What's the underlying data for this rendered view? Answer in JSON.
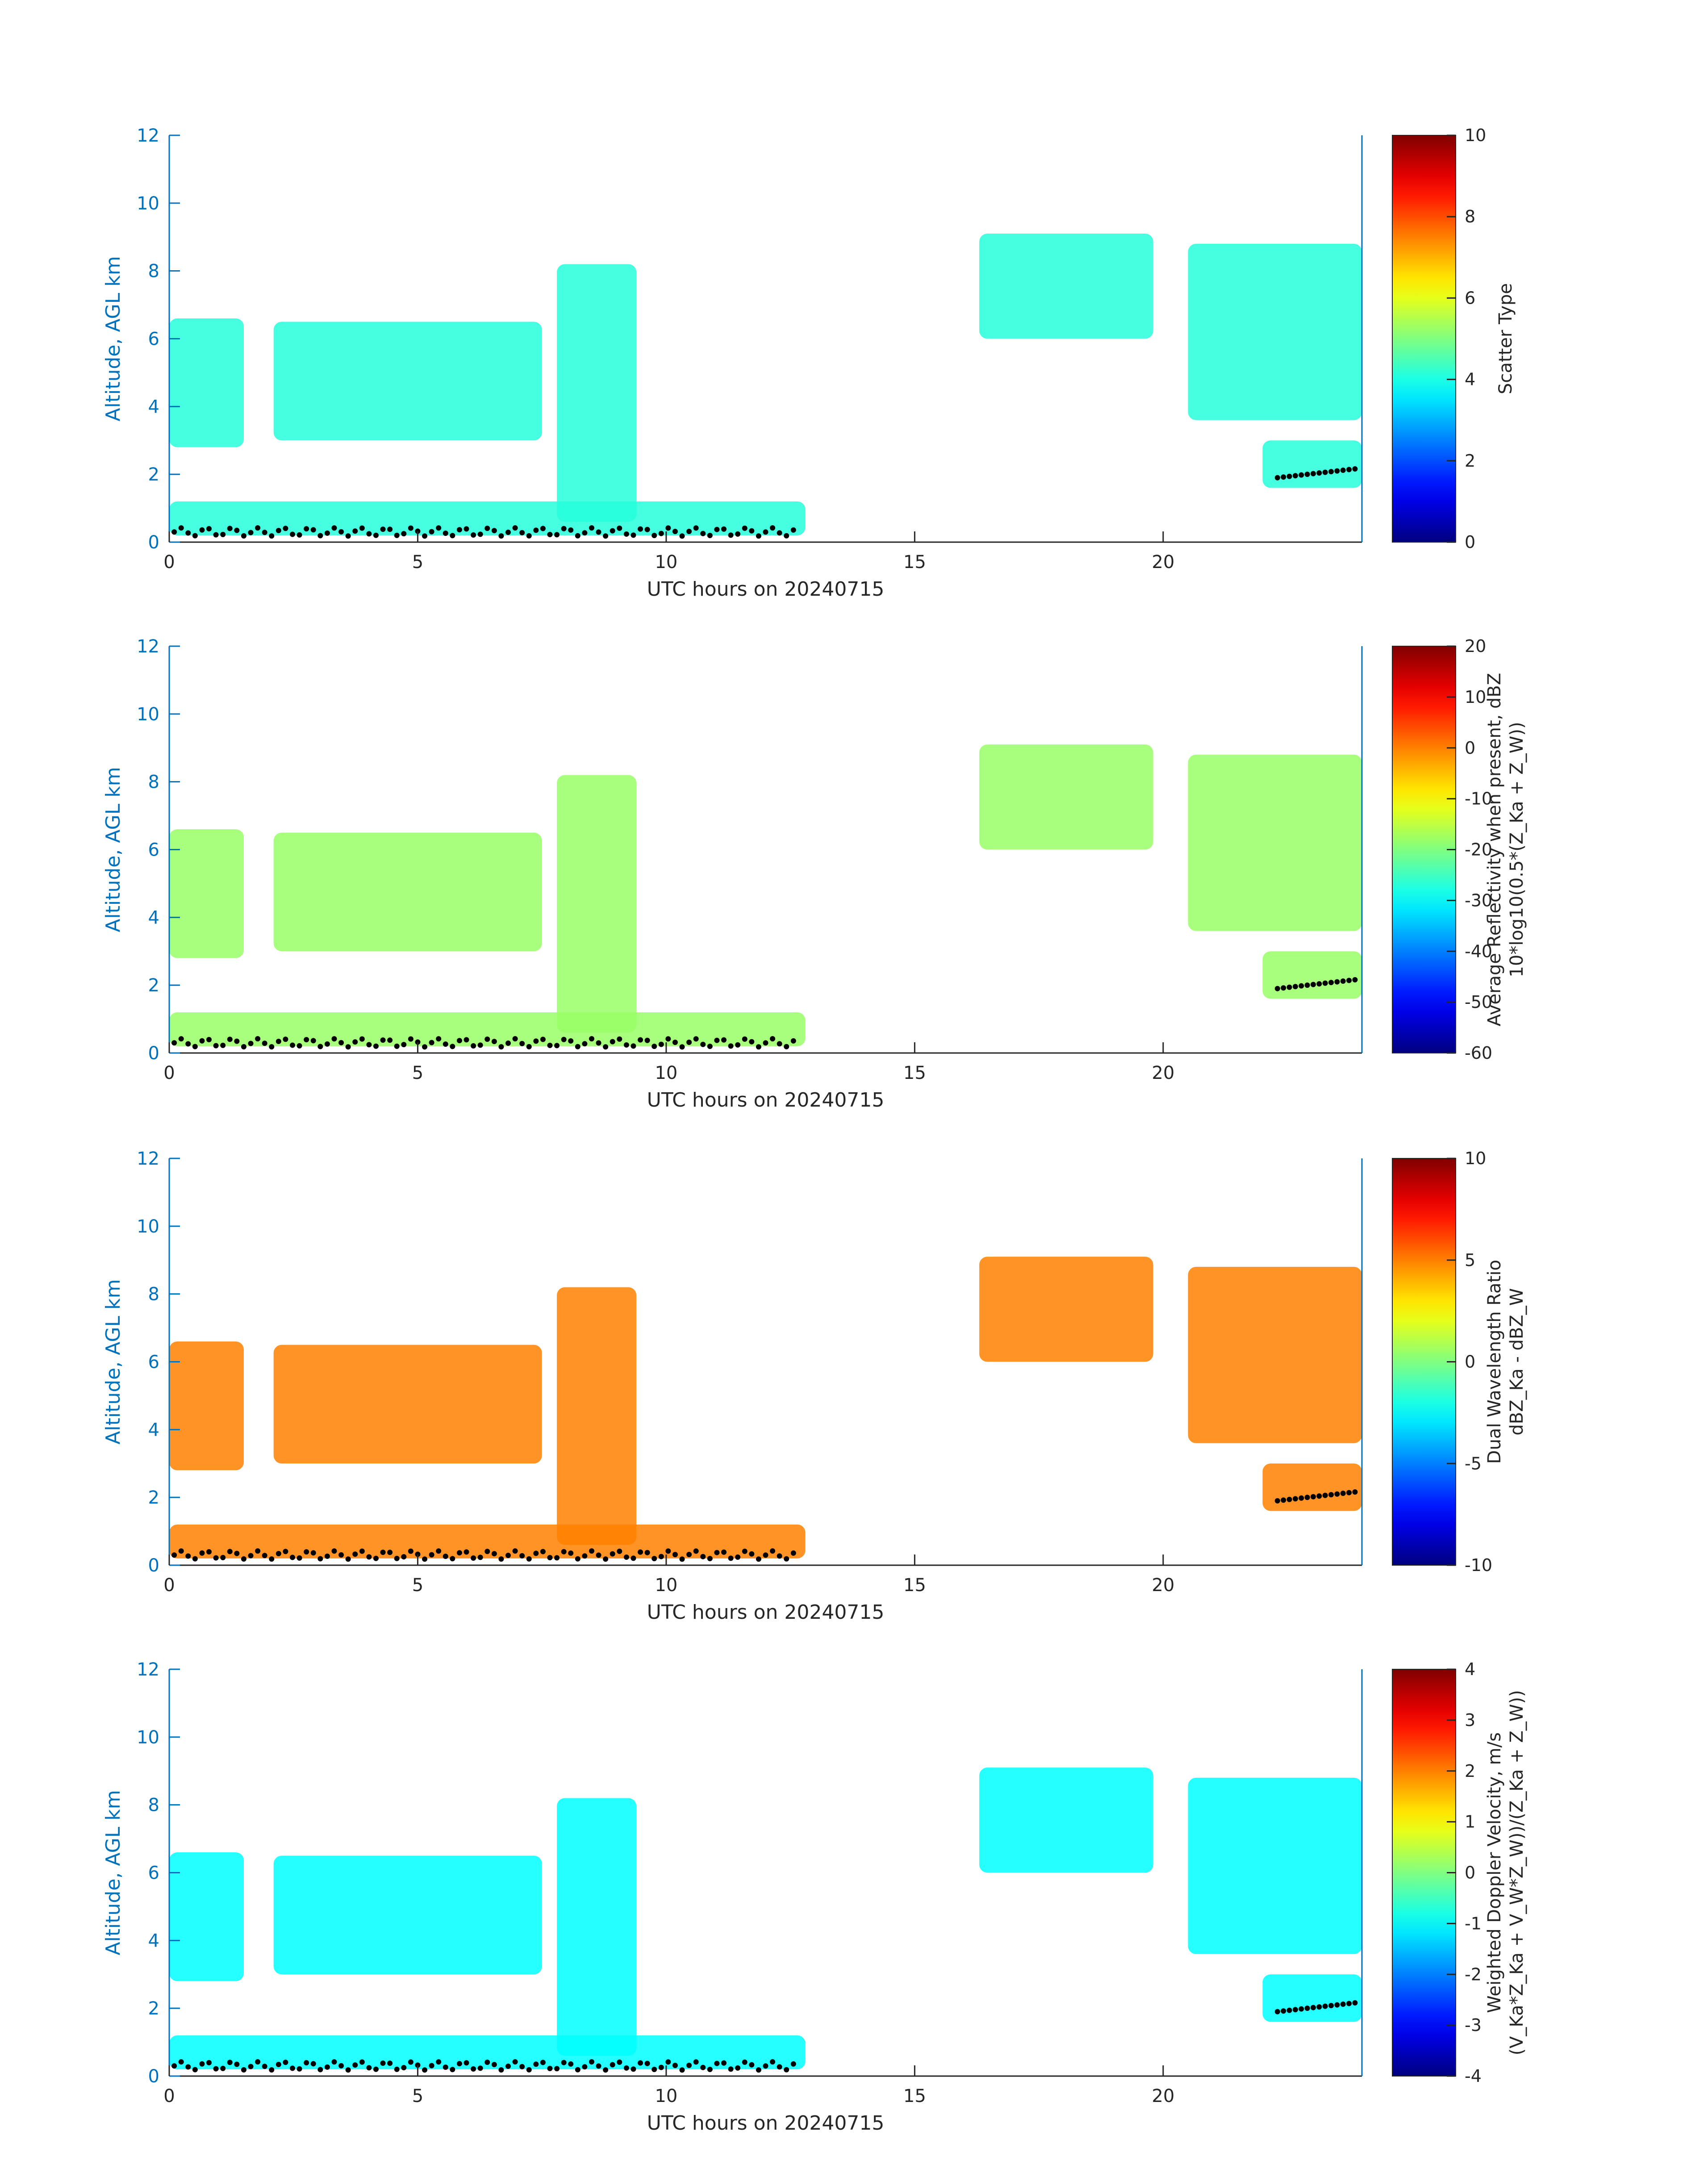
{
  "figure": {
    "date": "20240715"
  },
  "chart_data": [
    {
      "type": "heatmap",
      "title": "",
      "xlabel": "UTC hours on 20240715",
      "ylabel": "Altitude, AGL km",
      "xlim": [
        0,
        24
      ],
      "ylim": [
        0,
        12
      ],
      "xticks": [
        "0",
        "5",
        "10",
        "15",
        "20"
      ],
      "yticks": [
        "0",
        "2",
        "4",
        "6",
        "8",
        "10",
        "12"
      ],
      "colorbar": {
        "label_lines": [
          "Scatter Type"
        ],
        "range": [
          0,
          10
        ],
        "ticks": [
          "0",
          "2",
          "4",
          "6",
          "8",
          "10"
        ],
        "colormap": "jet"
      },
      "typical_value": 4.1,
      "dominant_color": "#2bffd1"
    },
    {
      "type": "heatmap",
      "title": "",
      "xlabel": "UTC hours on 20240715",
      "ylabel": "Altitude, AGL km",
      "xlim": [
        0,
        24
      ],
      "ylim": [
        0,
        12
      ],
      "xticks": [
        "0",
        "5",
        "10",
        "15",
        "20"
      ],
      "yticks": [
        "0",
        "2",
        "4",
        "6",
        "8",
        "10",
        "12"
      ],
      "colorbar": {
        "label_lines": [
          "Average Reflectivity when present, dBZ",
          "10*log10(0.5*(Z_Ka + Z_W))"
        ],
        "range": [
          -60,
          20
        ],
        "ticks": [
          "-60",
          "-50",
          "-40",
          "-30",
          "-20",
          "-10",
          "0",
          "10",
          "20"
        ],
        "colormap": "jet"
      },
      "typical_value": -18,
      "dominant_color": "#f0c020"
    },
    {
      "type": "heatmap",
      "title": "",
      "xlabel": "UTC hours on 20240715",
      "ylabel": "Altitude, AGL km",
      "xlim": [
        0,
        24
      ],
      "ylim": [
        0,
        12
      ],
      "xticks": [
        "0",
        "5",
        "10",
        "15",
        "20"
      ],
      "yticks": [
        "0",
        "2",
        "4",
        "6",
        "8",
        "10",
        "12"
      ],
      "colorbar": {
        "label_lines": [
          "Dual Wavelength Ratio",
          "dBZ_Ka - dBZ_W"
        ],
        "range": [
          -10,
          10
        ],
        "ticks": [
          "-10",
          "-5",
          "0",
          "5",
          "10"
        ],
        "colormap": "jet"
      },
      "typical_value": 5,
      "dominant_color": "#ff9a00"
    },
    {
      "type": "heatmap",
      "title": "",
      "xlabel": "UTC hours on 20240715",
      "ylabel": "Altitude, AGL km",
      "xlim": [
        0,
        24
      ],
      "ylim": [
        0,
        12
      ],
      "xticks": [
        "0",
        "5",
        "10",
        "15",
        "20"
      ],
      "yticks": [
        "0",
        "2",
        "4",
        "6",
        "8",
        "10",
        "12"
      ],
      "colorbar": {
        "label_lines": [
          "Weighted Doppler Velocity, m/s",
          "(V_Ka*Z_Ka + V_W*Z_W))/(Z_Ka + Z_W))"
        ],
        "range": [
          -4,
          4
        ],
        "ticks": [
          "-4",
          "-3",
          "-2",
          "-1",
          "0",
          "1",
          "2",
          "3",
          "4"
        ],
        "colormap": "jet"
      },
      "typical_value": -1,
      "dominant_color": "#40d0e8"
    }
  ],
  "echo_regions_hours_km": [
    {
      "name": "boundary-layer",
      "x0": 0,
      "x1": 12.8,
      "y0": 0.2,
      "y1": 1.2
    },
    {
      "name": "midlevel-cloud-a",
      "x0": 0,
      "x1": 1.5,
      "y0": 2.8,
      "y1": 6.6
    },
    {
      "name": "midlevel-cloud-b",
      "x0": 2.1,
      "x1": 7.5,
      "y0": 3.0,
      "y1": 6.5
    },
    {
      "name": "convective-column",
      "x0": 7.8,
      "x1": 9.4,
      "y0": 0.6,
      "y1": 8.2
    },
    {
      "name": "high-cloud-a",
      "x0": 16.3,
      "x1": 19.8,
      "y0": 6.0,
      "y1": 9.1
    },
    {
      "name": "high-cloud-b",
      "x0": 20.5,
      "x1": 24,
      "y0": 3.6,
      "y1": 8.8
    },
    {
      "name": "low-cloud-c",
      "x0": 22.0,
      "x1": 24,
      "y0": 1.6,
      "y1": 3.0
    }
  ],
  "cloud_base_points": "black dots marking detected cloud base height"
}
